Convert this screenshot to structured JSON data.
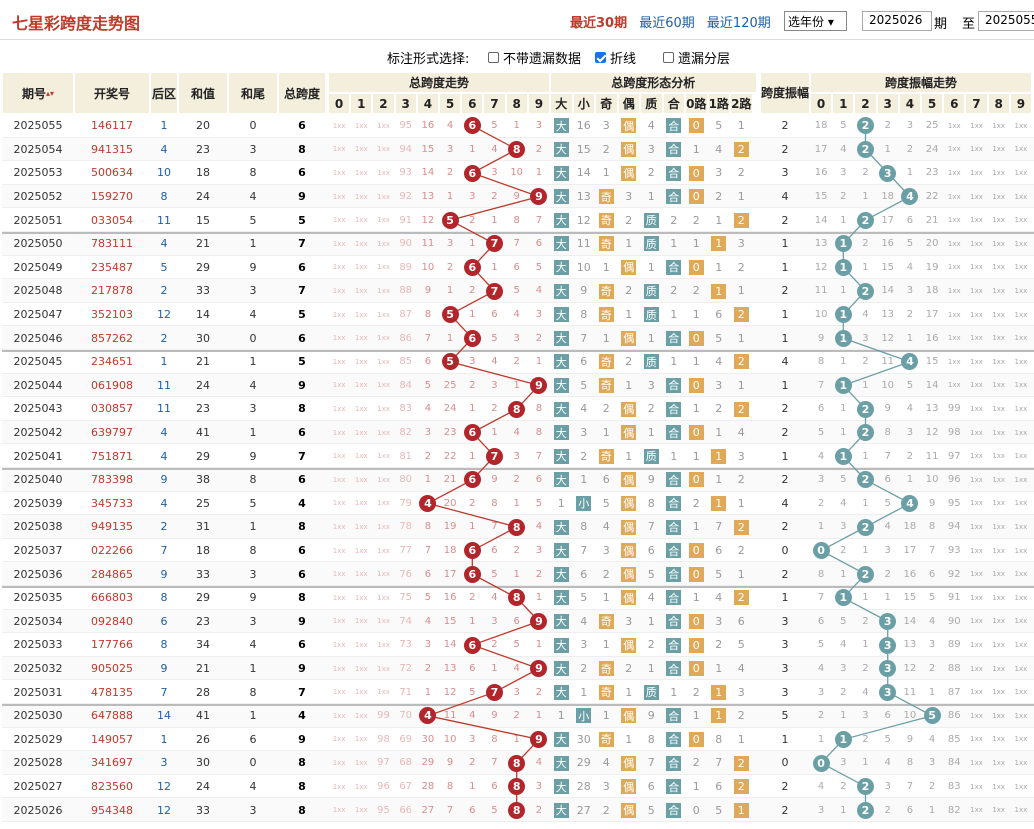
{
  "title": "七星彩跨度走势图",
  "ranges": [
    "最近30期",
    "最近60期",
    "最近120期"
  ],
  "year_select": "选年份",
  "from_issue": "2025026",
  "period_label": "期",
  "to_label": "至",
  "to_issue": "2025055",
  "options_label": "标注形式选择:",
  "options": [
    {
      "label": "不带遗漏数据",
      "checked": false
    },
    {
      "label": "折线",
      "checked": true
    },
    {
      "label": "遗漏分层",
      "checked": false
    }
  ],
  "headers": {
    "issue": "期号",
    "number": "开奖号",
    "back": "后区",
    "sum": "和值",
    "tail": "和尾",
    "span": "总跨度",
    "span_trend": "总跨度走势",
    "form": "总跨度形态分析",
    "amp": "跨度振幅",
    "amp_trend": "跨度振幅走势",
    "digits": [
      "0",
      "1",
      "2",
      "3",
      "4",
      "5",
      "6",
      "7",
      "8",
      "9"
    ],
    "form_cols": [
      "大",
      "小",
      "奇",
      "偶",
      "质",
      "合",
      "0路",
      "1路",
      "2路"
    ]
  },
  "colors": {
    "span_ball": "#b1252b",
    "amp_ball": "#6b9fa6",
    "big_small": "#6b9fa6",
    "odd_even": "#e0a958",
    "prime": "#6b9fa6",
    "route": "#e0a958"
  },
  "rows": [
    {
      "issue": "2025055",
      "num": "146117",
      "back": "1",
      "sum": "20",
      "tail": "0",
      "span": 6,
      "amp": 2,
      "dm": [
        "1xx",
        "1xx",
        "1xx",
        "95",
        "16",
        "4",
        "6",
        "5",
        "1",
        "3"
      ],
      "fm": [
        "大",
        "16",
        "3",
        "偶",
        "4",
        "合",
        "0",
        "5",
        "1"
      ],
      "am": [
        "18",
        "5",
        "2",
        "2",
        "3",
        "25",
        "1xx",
        "1xx",
        "1xx",
        "1xx"
      ]
    },
    {
      "issue": "2025054",
      "num": "941315",
      "back": "4",
      "sum": "23",
      "tail": "3",
      "span": 8,
      "amp": 2,
      "dm": [
        "1xx",
        "1xx",
        "1xx",
        "94",
        "15",
        "3",
        "1",
        "4",
        "8",
        "2"
      ],
      "fm": [
        "大",
        "15",
        "2",
        "偶",
        "3",
        "合",
        "1",
        "4",
        "2"
      ],
      "am": [
        "17",
        "4",
        "2",
        "1",
        "2",
        "24",
        "1xx",
        "1xx",
        "1xx",
        "1xx"
      ]
    },
    {
      "issue": "2025053",
      "num": "500634",
      "back": "10",
      "sum": "18",
      "tail": "8",
      "span": 6,
      "amp": 3,
      "dm": [
        "1xx",
        "1xx",
        "1xx",
        "93",
        "14",
        "2",
        "6",
        "3",
        "10",
        "1"
      ],
      "fm": [
        "大",
        "14",
        "1",
        "偶",
        "2",
        "合",
        "0",
        "3",
        "2"
      ],
      "am": [
        "16",
        "3",
        "2",
        "3",
        "1",
        "23",
        "1xx",
        "1xx",
        "1xx",
        "1xx"
      ]
    },
    {
      "issue": "2025052",
      "num": "159270",
      "back": "8",
      "sum": "24",
      "tail": "4",
      "span": 9,
      "amp": 4,
      "dm": [
        "1xx",
        "1xx",
        "1xx",
        "92",
        "13",
        "1",
        "3",
        "2",
        "9",
        "9"
      ],
      "fm": [
        "大",
        "13",
        "奇",
        "3",
        "1",
        "合",
        "0",
        "2",
        "1"
      ],
      "am": [
        "15",
        "2",
        "1",
        "18",
        "4",
        "22",
        "1xx",
        "1xx",
        "1xx",
        "1xx"
      ]
    },
    {
      "issue": "2025051",
      "num": "033054",
      "back": "11",
      "sum": "15",
      "tail": "5",
      "span": 5,
      "amp": 2,
      "dm": [
        "1xx",
        "1xx",
        "1xx",
        "91",
        "12",
        "5",
        "2",
        "1",
        "8",
        "7"
      ],
      "fm": [
        "大",
        "12",
        "奇",
        "2",
        "质",
        "2",
        "2",
        "1",
        "2"
      ],
      "am": [
        "14",
        "1",
        "2",
        "17",
        "6",
        "21",
        "1xx",
        "1xx",
        "1xx",
        "1xx"
      ]
    },
    {
      "issue": "2025050",
      "num": "783111",
      "back": "4",
      "sum": "21",
      "tail": "1",
      "span": 7,
      "amp": 1,
      "dm": [
        "1xx",
        "1xx",
        "1xx",
        "90",
        "11",
        "3",
        "1",
        "7",
        "7",
        "6"
      ],
      "fm": [
        "大",
        "11",
        "奇",
        "1",
        "质",
        "1",
        "1",
        "1",
        "3"
      ],
      "am": [
        "13",
        "1",
        "2",
        "16",
        "5",
        "20",
        "1xx",
        "1xx",
        "1xx",
        "1xx"
      ]
    },
    {
      "issue": "2025049",
      "num": "235487",
      "back": "5",
      "sum": "29",
      "tail": "9",
      "span": 6,
      "amp": 1,
      "dm": [
        "1xx",
        "1xx",
        "1xx",
        "89",
        "10",
        "2",
        "6",
        "1",
        "6",
        "5"
      ],
      "fm": [
        "大",
        "10",
        "1",
        "偶",
        "1",
        "合",
        "0",
        "1",
        "2"
      ],
      "am": [
        "12",
        "1",
        "1",
        "15",
        "4",
        "19",
        "1xx",
        "1xx",
        "1xx",
        "1xx"
      ]
    },
    {
      "issue": "2025048",
      "num": "217878",
      "back": "2",
      "sum": "33",
      "tail": "3",
      "span": 7,
      "amp": 2,
      "dm": [
        "1xx",
        "1xx",
        "1xx",
        "88",
        "9",
        "1",
        "2",
        "7",
        "5",
        "4"
      ],
      "fm": [
        "大",
        "9",
        "奇",
        "2",
        "质",
        "2",
        "2",
        "1",
        "1"
      ],
      "am": [
        "11",
        "1",
        "2",
        "14",
        "3",
        "18",
        "1xx",
        "1xx",
        "1xx",
        "1xx"
      ]
    },
    {
      "issue": "2025047",
      "num": "352103",
      "back": "12",
      "sum": "14",
      "tail": "4",
      "span": 5,
      "amp": 1,
      "dm": [
        "1xx",
        "1xx",
        "1xx",
        "87",
        "8",
        "5",
        "1",
        "6",
        "4",
        "3"
      ],
      "fm": [
        "大",
        "8",
        "奇",
        "1",
        "质",
        "1",
        "1",
        "6",
        "2"
      ],
      "am": [
        "10",
        "1",
        "4",
        "13",
        "2",
        "17",
        "1xx",
        "1xx",
        "1xx",
        "1xx"
      ]
    },
    {
      "issue": "2025046",
      "num": "857262",
      "back": "2",
      "sum": "30",
      "tail": "0",
      "span": 6,
      "amp": 1,
      "dm": [
        "1xx",
        "1xx",
        "1xx",
        "86",
        "7",
        "1",
        "6",
        "5",
        "3",
        "2"
      ],
      "fm": [
        "大",
        "7",
        "1",
        "偶",
        "1",
        "合",
        "0",
        "5",
        "1"
      ],
      "am": [
        "9",
        "1",
        "3",
        "12",
        "1",
        "16",
        "1xx",
        "1xx",
        "1xx",
        "1xx"
      ]
    },
    {
      "issue": "2025045",
      "num": "234651",
      "back": "1",
      "sum": "21",
      "tail": "1",
      "span": 5,
      "amp": 4,
      "dm": [
        "1xx",
        "1xx",
        "1xx",
        "85",
        "6",
        "5",
        "3",
        "4",
        "2",
        "1"
      ],
      "fm": [
        "大",
        "6",
        "奇",
        "2",
        "质",
        "1",
        "1",
        "4",
        "2"
      ],
      "am": [
        "8",
        "1",
        "2",
        "11",
        "4",
        "15",
        "1xx",
        "1xx",
        "1xx",
        "1xx"
      ]
    },
    {
      "issue": "2025044",
      "num": "061908",
      "back": "11",
      "sum": "24",
      "tail": "4",
      "span": 9,
      "amp": 1,
      "dm": [
        "1xx",
        "1xx",
        "1xx",
        "84",
        "5",
        "25",
        "2",
        "3",
        "1",
        "9"
      ],
      "fm": [
        "大",
        "5",
        "奇",
        "1",
        "3",
        "合",
        "0",
        "3",
        "1"
      ],
      "am": [
        "7",
        "1",
        "1",
        "10",
        "5",
        "14",
        "1xx",
        "1xx",
        "1xx",
        "1xx"
      ]
    },
    {
      "issue": "2025043",
      "num": "030857",
      "back": "11",
      "sum": "23",
      "tail": "3",
      "span": 8,
      "amp": 2,
      "dm": [
        "1xx",
        "1xx",
        "1xx",
        "83",
        "4",
        "24",
        "1",
        "2",
        "8",
        "8"
      ],
      "fm": [
        "大",
        "4",
        "2",
        "偶",
        "2",
        "合",
        "1",
        "2",
        "2"
      ],
      "am": [
        "6",
        "1",
        "2",
        "9",
        "4",
        "13",
        "99",
        "1xx",
        "1xx",
        "1xx"
      ]
    },
    {
      "issue": "2025042",
      "num": "639797",
      "back": "4",
      "sum": "41",
      "tail": "1",
      "span": 6,
      "amp": 2,
      "dm": [
        "1xx",
        "1xx",
        "1xx",
        "82",
        "3",
        "23",
        "6",
        "1",
        "4",
        "8"
      ],
      "fm": [
        "大",
        "3",
        "1",
        "偶",
        "1",
        "合",
        "0",
        "1",
        "4"
      ],
      "am": [
        "5",
        "1",
        "2",
        "8",
        "3",
        "12",
        "98",
        "1xx",
        "1xx",
        "1xx"
      ]
    },
    {
      "issue": "2025041",
      "num": "751871",
      "back": "4",
      "sum": "29",
      "tail": "9",
      "span": 7,
      "amp": 1,
      "dm": [
        "1xx",
        "1xx",
        "1xx",
        "81",
        "2",
        "22",
        "1",
        "7",
        "3",
        "7"
      ],
      "fm": [
        "大",
        "2",
        "奇",
        "1",
        "质",
        "1",
        "1",
        "1",
        "3"
      ],
      "am": [
        "4",
        "1",
        "1",
        "7",
        "2",
        "11",
        "97",
        "1xx",
        "1xx",
        "1xx"
      ]
    },
    {
      "issue": "2025040",
      "num": "783398",
      "back": "9",
      "sum": "38",
      "tail": "8",
      "span": 6,
      "amp": 2,
      "dm": [
        "1xx",
        "1xx",
        "1xx",
        "80",
        "1",
        "21",
        "6",
        "9",
        "2",
        "6"
      ],
      "fm": [
        "大",
        "1",
        "6",
        "偶",
        "9",
        "合",
        "0",
        "1",
        "2"
      ],
      "am": [
        "3",
        "5",
        "2",
        "6",
        "1",
        "10",
        "96",
        "1xx",
        "1xx",
        "1xx"
      ]
    },
    {
      "issue": "2025039",
      "num": "345733",
      "back": "4",
      "sum": "25",
      "tail": "5",
      "span": 4,
      "amp": 4,
      "dm": [
        "1xx",
        "1xx",
        "1xx",
        "79",
        "4",
        "20",
        "2",
        "8",
        "1",
        "5"
      ],
      "fm": [
        "1",
        "小",
        "5",
        "偶",
        "8",
        "合",
        "2",
        "1",
        "1"
      ],
      "am": [
        "2",
        "4",
        "1",
        "5",
        "4",
        "9",
        "95",
        "1xx",
        "1xx",
        "1xx"
      ]
    },
    {
      "issue": "2025038",
      "num": "949135",
      "back": "2",
      "sum": "31",
      "tail": "1",
      "span": 8,
      "amp": 2,
      "dm": [
        "1xx",
        "1xx",
        "1xx",
        "78",
        "8",
        "19",
        "1",
        "7",
        "8",
        "4"
      ],
      "fm": [
        "大",
        "8",
        "4",
        "偶",
        "7",
        "合",
        "1",
        "7",
        "2"
      ],
      "am": [
        "1",
        "3",
        "2",
        "4",
        "18",
        "8",
        "94",
        "1xx",
        "1xx",
        "1xx"
      ]
    },
    {
      "issue": "2025037",
      "num": "022266",
      "back": "7",
      "sum": "18",
      "tail": "8",
      "span": 6,
      "amp": 0,
      "dm": [
        "1xx",
        "1xx",
        "1xx",
        "77",
        "7",
        "18",
        "6",
        "6",
        "2",
        "3"
      ],
      "fm": [
        "大",
        "7",
        "3",
        "偶",
        "6",
        "合",
        "0",
        "6",
        "2"
      ],
      "am": [
        "0",
        "2",
        "1",
        "3",
        "17",
        "7",
        "93",
        "1xx",
        "1xx",
        "1xx"
      ]
    },
    {
      "issue": "2025036",
      "num": "284865",
      "back": "9",
      "sum": "33",
      "tail": "3",
      "span": 6,
      "amp": 2,
      "dm": [
        "1xx",
        "1xx",
        "1xx",
        "76",
        "6",
        "17",
        "6",
        "5",
        "1",
        "2"
      ],
      "fm": [
        "大",
        "6",
        "2",
        "偶",
        "5",
        "合",
        "0",
        "5",
        "1"
      ],
      "am": [
        "8",
        "1",
        "2",
        "2",
        "16",
        "6",
        "92",
        "1xx",
        "1xx",
        "1xx"
      ]
    },
    {
      "issue": "2025035",
      "num": "666803",
      "back": "8",
      "sum": "29",
      "tail": "9",
      "span": 8,
      "amp": 1,
      "dm": [
        "1xx",
        "1xx",
        "1xx",
        "75",
        "5",
        "16",
        "2",
        "4",
        "8",
        "1"
      ],
      "fm": [
        "大",
        "5",
        "1",
        "偶",
        "4",
        "合",
        "1",
        "4",
        "2"
      ],
      "am": [
        "7",
        "1",
        "1",
        "1",
        "15",
        "5",
        "91",
        "1xx",
        "1xx",
        "1xx"
      ]
    },
    {
      "issue": "2025034",
      "num": "092840",
      "back": "6",
      "sum": "23",
      "tail": "3",
      "span": 9,
      "amp": 3,
      "dm": [
        "1xx",
        "1xx",
        "1xx",
        "74",
        "4",
        "15",
        "1",
        "3",
        "6",
        "9"
      ],
      "fm": [
        "大",
        "4",
        "奇",
        "3",
        "1",
        "合",
        "0",
        "3",
        "6"
      ],
      "am": [
        "6",
        "5",
        "2",
        "3",
        "14",
        "4",
        "90",
        "1xx",
        "1xx",
        "1xx"
      ]
    },
    {
      "issue": "2025033",
      "num": "177766",
      "back": "8",
      "sum": "34",
      "tail": "4",
      "span": 6,
      "amp": 3,
      "dm": [
        "1xx",
        "1xx",
        "1xx",
        "73",
        "3",
        "14",
        "6",
        "2",
        "5",
        "1"
      ],
      "fm": [
        "大",
        "3",
        "1",
        "偶",
        "2",
        "合",
        "0",
        "2",
        "5"
      ],
      "am": [
        "5",
        "4",
        "1",
        "3",
        "13",
        "3",
        "89",
        "1xx",
        "1xx",
        "1xx"
      ]
    },
    {
      "issue": "2025032",
      "num": "905025",
      "back": "9",
      "sum": "21",
      "tail": "1",
      "span": 9,
      "amp": 3,
      "dm": [
        "1xx",
        "1xx",
        "1xx",
        "72",
        "2",
        "13",
        "6",
        "1",
        "4",
        "9"
      ],
      "fm": [
        "大",
        "2",
        "奇",
        "2",
        "1",
        "合",
        "0",
        "1",
        "4"
      ],
      "am": [
        "4",
        "3",
        "2",
        "1",
        "12",
        "2",
        "88",
        "1xx",
        "1xx",
        "1xx"
      ]
    },
    {
      "issue": "2025031",
      "num": "478135",
      "back": "7",
      "sum": "28",
      "tail": "8",
      "span": 7,
      "amp": 3,
      "dm": [
        "1xx",
        "1xx",
        "1xx",
        "71",
        "1",
        "12",
        "5",
        "7",
        "3",
        "2"
      ],
      "fm": [
        "大",
        "1",
        "奇",
        "1",
        "质",
        "1",
        "2",
        "1",
        "3"
      ],
      "am": [
        "3",
        "2",
        "4",
        "3",
        "11",
        "1",
        "87",
        "1xx",
        "1xx",
        "1xx"
      ]
    },
    {
      "issue": "2025030",
      "num": "647888",
      "back": "14",
      "sum": "41",
      "tail": "1",
      "span": 4,
      "amp": 5,
      "dm": [
        "1xx",
        "1xx",
        "99",
        "70",
        "4",
        "11",
        "4",
        "9",
        "2",
        "1"
      ],
      "fm": [
        "1",
        "小",
        "1",
        "偶",
        "9",
        "合",
        "1",
        "1",
        "2"
      ],
      "am": [
        "2",
        "1",
        "3",
        "6",
        "10",
        "5",
        "86",
        "1xx",
        "1xx",
        "1xx"
      ]
    },
    {
      "issue": "2025029",
      "num": "149057",
      "back": "1",
      "sum": "26",
      "tail": "6",
      "span": 9,
      "amp": 1,
      "dm": [
        "1xx",
        "1xx",
        "98",
        "69",
        "30",
        "10",
        "3",
        "8",
        "1",
        "9"
      ],
      "fm": [
        "大",
        "30",
        "奇",
        "1",
        "8",
        "合",
        "0",
        "8",
        "1"
      ],
      "am": [
        "1",
        "1",
        "2",
        "5",
        "9",
        "4",
        "85",
        "1xx",
        "1xx",
        "1xx"
      ]
    },
    {
      "issue": "2025028",
      "num": "341697",
      "back": "3",
      "sum": "30",
      "tail": "0",
      "span": 8,
      "amp": 0,
      "dm": [
        "1xx",
        "1xx",
        "97",
        "68",
        "29",
        "9",
        "2",
        "7",
        "8",
        "4"
      ],
      "fm": [
        "大",
        "29",
        "4",
        "偶",
        "7",
        "合",
        "2",
        "7",
        "2"
      ],
      "am": [
        "0",
        "3",
        "1",
        "4",
        "8",
        "3",
        "84",
        "1xx",
        "1xx",
        "1xx"
      ]
    },
    {
      "issue": "2025027",
      "num": "823560",
      "back": "12",
      "sum": "24",
      "tail": "4",
      "span": 8,
      "amp": 2,
      "dm": [
        "1xx",
        "1xx",
        "96",
        "67",
        "28",
        "8",
        "1",
        "6",
        "8",
        "3"
      ],
      "fm": [
        "大",
        "28",
        "3",
        "偶",
        "6",
        "合",
        "1",
        "6",
        "2"
      ],
      "am": [
        "4",
        "2",
        "2",
        "3",
        "7",
        "2",
        "83",
        "1xx",
        "1xx",
        "1xx"
      ]
    },
    {
      "issue": "2025026",
      "num": "954348",
      "back": "12",
      "sum": "33",
      "tail": "3",
      "span": 8,
      "amp": 2,
      "dm": [
        "1xx",
        "1xx",
        "95",
        "66",
        "27",
        "7",
        "6",
        "5",
        "1",
        "2"
      ],
      "fm": [
        "大",
        "27",
        "2",
        "偶",
        "5",
        "合",
        "0",
        "5",
        "1"
      ],
      "am": [
        "3",
        "1",
        "2",
        "2",
        "6",
        "1",
        "82",
        "1xx",
        "1xx",
        "1xx"
      ]
    }
  ]
}
